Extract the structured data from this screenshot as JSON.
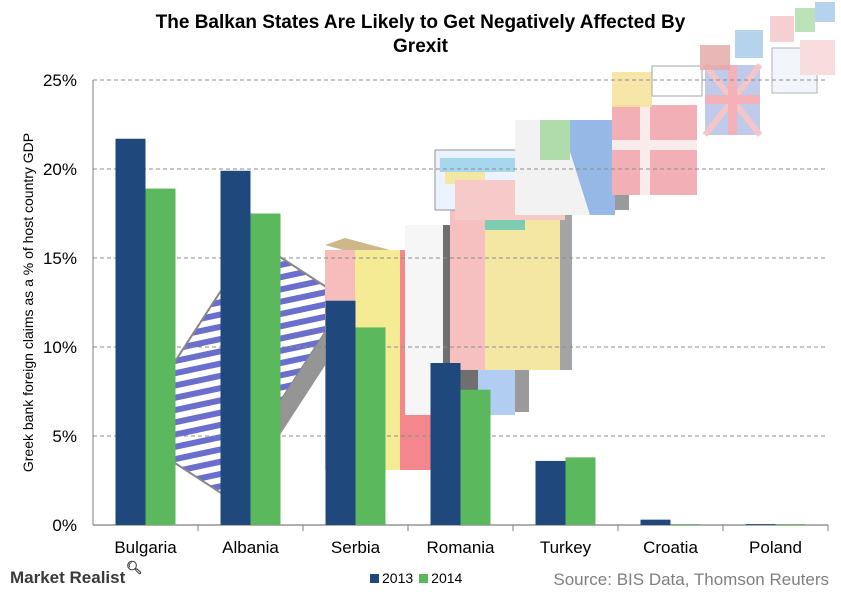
{
  "header": {
    "title_line1": "The Balkan States Are Likely  to Get Negatively Affected By",
    "title_line2": "Grexit"
  },
  "footer": {
    "brand": "Market Realist",
    "source": "Source: BIS Data,  Thomson Reuters"
  },
  "colors": {
    "series_2013": "#1f497d",
    "series_2014": "#5cb85c",
    "gridline": "#8c8c8c"
  },
  "icons": {
    "brand_mark": "magnifier-icon"
  },
  "chart_data": {
    "type": "bar",
    "title": "The Balkan States Are Likely  to Get Negatively Affected By Grexit",
    "xlabel": "",
    "ylabel": "Greek bank foreign claims as a % of host country GDP",
    "categories": [
      "Bulgaria",
      "Albania",
      "Serbia",
      "Romania",
      "Turkey",
      "Croatia",
      "Poland"
    ],
    "series": [
      {
        "name": "2013",
        "color": "#1f497d",
        "values": [
          21.7,
          19.9,
          12.6,
          9.1,
          3.6,
          0.3,
          0.05
        ]
      },
      {
        "name": "2014",
        "color": "#5cb85c",
        "values": [
          18.9,
          17.5,
          11.1,
          7.6,
          3.8,
          0.05,
          0.05
        ]
      }
    ],
    "ylim": [
      0,
      25
    ],
    "yticks": [
      0,
      5,
      10,
      15,
      20,
      25
    ],
    "ytick_labels": [
      "0%",
      "5%",
      "10%",
      "15%",
      "20%",
      "25%"
    ],
    "grid": true,
    "legend": "bottom"
  }
}
